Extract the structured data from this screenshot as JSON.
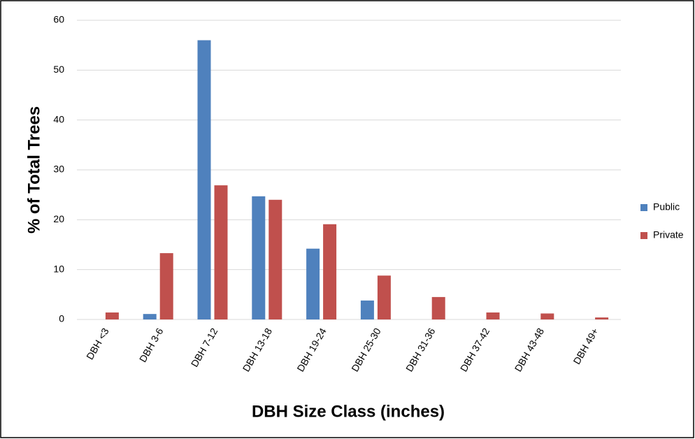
{
  "chart_data": {
    "type": "bar",
    "x_label": "DBH Size Class (inches)",
    "y_label": "% of Total Trees",
    "categories": [
      "DBH <3",
      "DBH 3-6",
      "DBH 7-12",
      "DBH 13-18",
      "DBH 19-24",
      "DBH 25-30",
      "DBH 31-36",
      "DBH 37-42",
      "DBH 43-48",
      "DBH 49+"
    ],
    "series": [
      {
        "name": "Public",
        "color": "#4f81bd",
        "values": [
          0,
          1.1,
          56,
          24.7,
          14.2,
          3.8,
          0,
          0,
          0,
          0
        ]
      },
      {
        "name": "Private",
        "color": "#c0504d",
        "values": [
          1.4,
          13.3,
          26.9,
          24.0,
          19.1,
          8.8,
          4.5,
          1.4,
          1.2,
          0.4
        ]
      }
    ],
    "ylim": [
      0,
      60
    ],
    "yticks": [
      0,
      10,
      20,
      30,
      40,
      50,
      60
    ],
    "grid": true,
    "legend": "right"
  }
}
